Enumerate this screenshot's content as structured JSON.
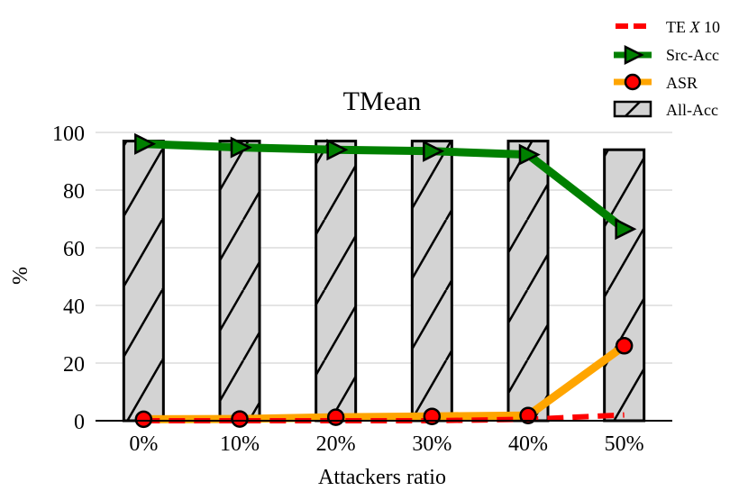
{
  "chart_data": {
    "type": "bar",
    "title": "TMean",
    "xlabel": "Attackers ratio",
    "ylabel": "%",
    "categories": [
      "0%",
      "10%",
      "20%",
      "30%",
      "40%",
      "50%"
    ],
    "ylim": [
      0,
      100
    ],
    "yticks": [
      "0",
      "20",
      "40",
      "60",
      "80",
      "100"
    ],
    "grid": true,
    "legend_position": "top-right",
    "series": [
      {
        "name": "All-Acc",
        "kind": "bar",
        "color": "#d3d3d3",
        "values": [
          97,
          97,
          97,
          97,
          97,
          94
        ]
      },
      {
        "name": "Src-Acc",
        "kind": "line",
        "marker": "triangle-right",
        "color": "#008000",
        "values": [
          96,
          94.8,
          94,
          93.5,
          92.3,
          66.5
        ]
      },
      {
        "name": "ASR",
        "kind": "line",
        "marker": "circle",
        "color": "#ffa500",
        "marker_color": "#ff0000",
        "values": [
          0.5,
          0.6,
          1.2,
          1.5,
          1.8,
          26
        ]
      },
      {
        "name": "TE X 10",
        "kind": "line",
        "style": "dashed",
        "color": "#ff0000",
        "values": [
          0,
          0,
          0,
          0,
          0.5,
          2
        ]
      }
    ],
    "legend": [
      {
        "prefix": "TE ",
        "italic": "X",
        "suffix": " 10"
      },
      {
        "label": "Src-Acc"
      },
      {
        "label": "ASR"
      },
      {
        "label": "All-Acc"
      }
    ]
  }
}
